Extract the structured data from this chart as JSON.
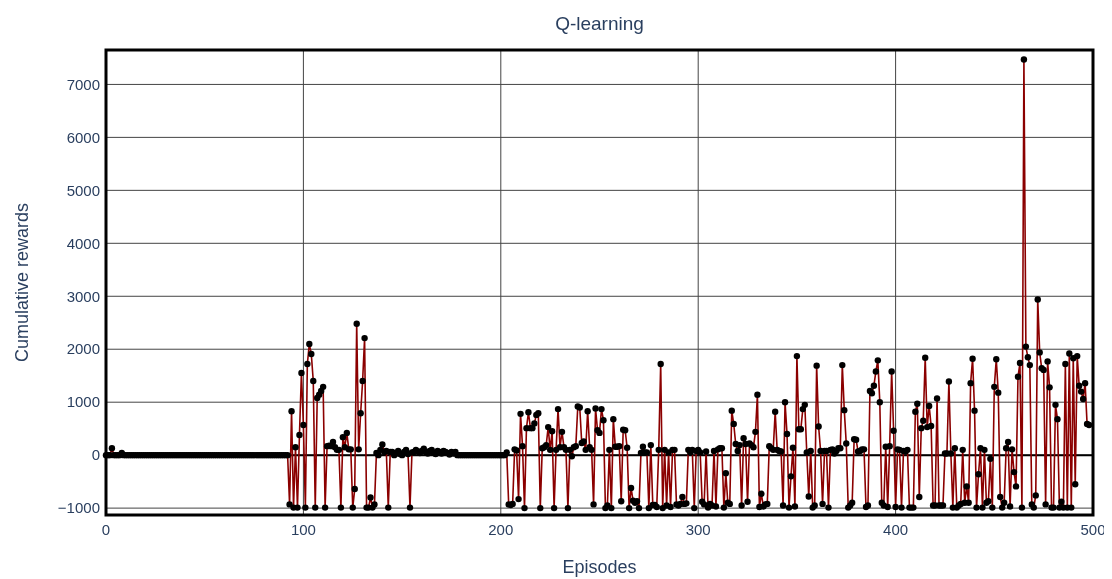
{
  "chart_data": {
    "type": "line",
    "title": "Q-learning",
    "xlabel": "Episodes",
    "ylabel": "Cumulative rewards",
    "xlim": [
      0,
      500
    ],
    "xticks": [
      0,
      100,
      200,
      300,
      400,
      500
    ],
    "ylim": [
      -1130,
      7650
    ],
    "yticks": [
      {
        "value": -1000,
        "label": "−1000"
      },
      0,
      1000,
      2000,
      3000,
      4000,
      5000,
      6000,
      7000
    ],
    "grid": true,
    "marker": "circle",
    "line_style": "solid",
    "ref_lines": [
      {
        "axis": "y",
        "value": 0,
        "color": "#000000"
      }
    ],
    "series": [
      {
        "color": "#8b0000",
        "x": [
          0,
          1,
          2,
          3,
          4,
          5,
          6,
          7,
          8,
          9,
          10,
          11,
          12,
          13,
          14,
          15,
          16,
          17,
          18,
          19,
          20,
          21,
          22,
          23,
          24,
          25,
          26,
          27,
          28,
          29,
          30,
          31,
          32,
          33,
          34,
          35,
          36,
          37,
          38,
          39,
          40,
          41,
          42,
          43,
          44,
          45,
          46,
          47,
          48,
          49,
          50,
          51,
          52,
          53,
          54,
          55,
          56,
          57,
          58,
          59,
          60,
          61,
          62,
          63,
          64,
          65,
          66,
          67,
          68,
          69,
          70,
          71,
          72,
          73,
          74,
          75,
          76,
          77,
          78,
          79,
          80,
          81,
          82,
          83,
          84,
          85,
          86,
          87,
          88,
          89,
          90,
          91,
          92,
          93,
          94,
          95,
          96,
          97,
          98,
          99,
          100,
          101,
          102,
          103,
          104,
          105,
          106,
          107,
          108,
          109,
          110,
          111,
          112,
          113,
          114,
          115,
          116,
          117,
          118,
          119,
          120,
          121,
          122,
          123,
          124,
          125,
          126,
          127,
          128,
          129,
          130,
          131,
          132,
          133,
          134,
          135,
          136,
          137,
          138,
          139,
          140,
          141,
          142,
          143,
          144,
          145,
          146,
          147,
          148,
          149,
          150,
          151,
          152,
          153,
          154,
          155,
          156,
          157,
          158,
          159,
          160,
          161,
          162,
          163,
          164,
          165,
          166,
          167,
          168,
          169,
          170,
          171,
          172,
          173,
          174,
          175,
          176,
          177,
          178,
          179,
          180,
          181,
          182,
          183,
          184,
          185,
          186,
          187,
          188,
          189,
          190,
          191,
          192,
          193,
          194,
          195,
          196,
          197,
          198,
          199,
          200,
          201,
          202,
          203,
          204,
          205,
          206,
          207,
          208,
          209,
          210,
          211,
          212,
          213,
          214,
          215,
          216,
          217,
          218,
          219,
          220,
          221,
          222,
          223,
          224,
          225,
          226,
          227,
          228,
          229,
          230,
          231,
          232,
          233,
          234,
          235,
          236,
          237,
          238,
          239,
          240,
          241,
          242,
          243,
          244,
          245,
          246,
          247,
          248,
          249,
          250,
          251,
          252,
          253,
          254,
          255,
          256,
          257,
          258,
          259,
          260,
          261,
          262,
          263,
          264,
          265,
          266,
          267,
          268,
          269,
          270,
          271,
          272,
          273,
          274,
          275,
          276,
          277,
          278,
          279,
          280,
          281,
          282,
          283,
          284,
          285,
          286,
          287,
          288,
          289,
          290,
          291,
          292,
          293,
          294,
          295,
          296,
          297,
          298,
          299,
          300,
          301,
          302,
          303,
          304,
          305,
          306,
          307,
          308,
          309,
          310,
          311,
          312,
          313,
          314,
          315,
          316,
          317,
          318,
          319,
          320,
          321,
          322,
          323,
          324,
          325,
          326,
          327,
          328,
          329,
          330,
          331,
          332,
          333,
          334,
          335,
          336,
          337,
          338,
          339,
          340,
          341,
          342,
          343,
          344,
          345,
          346,
          347,
          348,
          349,
          350,
          351,
          352,
          353,
          354,
          355,
          356,
          357,
          358,
          359,
          360,
          361,
          362,
          363,
          364,
          365,
          366,
          367,
          368,
          369,
          370,
          371,
          372,
          373,
          374,
          375,
          376,
          377,
          378,
          379,
          380,
          381,
          382,
          383,
          384,
          385,
          386,
          387,
          388,
          389,
          390,
          391,
          392,
          393,
          394,
          395,
          396,
          397,
          398,
          399,
          400,
          401,
          402,
          403,
          404,
          405,
          406,
          407,
          408,
          409,
          410,
          411,
          412,
          413,
          414,
          415,
          416,
          417,
          418,
          419,
          420,
          421,
          422,
          423,
          424,
          425,
          426,
          427,
          428,
          429,
          430,
          431,
          432,
          433,
          434,
          435,
          436,
          437,
          438,
          439,
          440,
          441,
          442,
          443,
          444,
          445,
          446,
          447,
          448,
          449,
          450,
          451,
          452,
          453,
          454,
          455,
          456,
          457,
          458,
          459,
          460,
          461,
          462,
          463,
          464,
          465,
          466,
          467,
          468,
          469,
          470,
          471,
          472,
          473,
          474,
          475,
          476,
          477,
          478,
          479,
          480,
          481,
          482,
          483,
          484,
          485,
          486,
          487,
          488,
          489,
          490,
          491,
          492,
          493,
          494,
          495,
          496,
          497,
          498
        ],
        "values": [
          0,
          0,
          0,
          130,
          0,
          0,
          0,
          0,
          40,
          0,
          0,
          0,
          0,
          0,
          0,
          0,
          0,
          0,
          0,
          0,
          0,
          0,
          0,
          0,
          0,
          0,
          0,
          0,
          0,
          0,
          0,
          0,
          0,
          0,
          0,
          0,
          0,
          0,
          0,
          0,
          0,
          0,
          0,
          0,
          0,
          0,
          0,
          0,
          0,
          0,
          0,
          0,
          0,
          0,
          0,
          0,
          0,
          0,
          0,
          0,
          0,
          0,
          0,
          0,
          0,
          0,
          0,
          0,
          0,
          0,
          0,
          0,
          0,
          0,
          0,
          0,
          0,
          0,
          0,
          0,
          0,
          0,
          0,
          0,
          0,
          0,
          0,
          0,
          0,
          0,
          0,
          0,
          0,
          -930,
          830,
          -990,
          150,
          -990,
          380,
          1550,
          570,
          -990,
          1720,
          2100,
          1910,
          1400,
          -990,
          1080,
          1140,
          1210,
          1290,
          -990,
          170,
          180,
          170,
          250,
          150,
          100,
          100,
          -990,
          340,
          150,
          420,
          110,
          110,
          -990,
          -640,
          2480,
          110,
          790,
          1400,
          2210,
          -990,
          -990,
          -800,
          -990,
          -930,
          40,
          0,
          100,
          200,
          60,
          80,
          -990,
          60,
          60,
          0,
          30,
          80,
          20,
          0,
          60,
          100,
          20,
          -990,
          50,
          60,
          100,
          70,
          40,
          80,
          120,
          60,
          30,
          80,
          100,
          40,
          20,
          80,
          60,
          30,
          80,
          60,
          40,
          10,
          60,
          30,
          60,
          0,
          0,
          0,
          0,
          0,
          0,
          0,
          0,
          0,
          0,
          0,
          0,
          0,
          0,
          0,
          0,
          0,
          0,
          0,
          0,
          0,
          0,
          0,
          0,
          0,
          50,
          -930,
          -940,
          -920,
          110,
          90,
          -830,
          780,
          170,
          -1000,
          510,
          810,
          510,
          510,
          600,
          760,
          790,
          -1000,
          130,
          150,
          190,
          530,
          100,
          450,
          -1000,
          100,
          870,
          150,
          440,
          150,
          100,
          -1000,
          100,
          -20,
          150,
          170,
          920,
          900,
          230,
          260,
          100,
          830,
          150,
          100,
          -930,
          880,
          470,
          420,
          870,
          660,
          -1000,
          -950,
          100,
          -1000,
          680,
          160,
          160,
          170,
          -870,
          480,
          470,
          140,
          -1000,
          -620,
          -860,
          -900,
          -870,
          -1000,
          40,
          160,
          50,
          50,
          -1000,
          190,
          -940,
          -940,
          -980,
          100,
          1720,
          -1000,
          100,
          -950,
          50,
          -980,
          100,
          100,
          -930,
          -950,
          -920,
          -790,
          -920,
          -910,
          100,
          50,
          100,
          -1000,
          80,
          100,
          50,
          -880,
          -930,
          70,
          -990,
          -920,
          -950,
          80,
          -970,
          110,
          130,
          130,
          -990,
          -340,
          -900,
          -920,
          840,
          590,
          210,
          80,
          190,
          -950,
          320,
          210,
          -880,
          220,
          190,
          150,
          440,
          1140,
          -980,
          -730,
          -970,
          -930,
          -920,
          170,
          130,
          100,
          820,
          100,
          80,
          70,
          -950,
          1000,
          400,
          -990,
          -400,
          140,
          -970,
          1870,
          490,
          490,
          870,
          950,
          50,
          -780,
          80,
          -990,
          -950,
          1690,
          540,
          80,
          -920,
          80,
          80,
          -990,
          100,
          110,
          30,
          80,
          130,
          130,
          1700,
          850,
          220,
          -990,
          -950,
          -900,
          300,
          290,
          70,
          80,
          110,
          110,
          -980,
          -950,
          1210,
          1170,
          1310,
          1580,
          1790,
          1000,
          -900,
          -950,
          160,
          -980,
          170,
          1580,
          460,
          -980,
          110,
          100,
          -990,
          80,
          70,
          100,
          -990,
          -990,
          -990,
          820,
          970,
          -790,
          510,
          650,
          1840,
          530,
          930,
          550,
          -950,
          -950,
          1070,
          -950,
          -950,
          -950,
          30,
          30,
          1390,
          30,
          -990,
          130,
          -990,
          -950,
          -920,
          100,
          -900,
          -590,
          -900,
          1360,
          1820,
          840,
          -990,
          -360,
          130,
          -990,
          100,
          -900,
          -870,
          -70,
          -990,
          1290,
          1810,
          1180,
          -790,
          -990,
          -900,
          130,
          250,
          -970,
          110,
          -320,
          -590,
          1480,
          1740,
          -990,
          7470,
          2050,
          1850,
          1700,
          -930,
          -990,
          -760,
          2940,
          1940,
          1640,
          1610,
          -930,
          1770,
          1280,
          -990,
          -990,
          950,
          680,
          -990,
          -880,
          -990,
          1720,
          -990,
          1920,
          -990,
          1830,
          -550,
          1870,
          1310,
          1200,
          1060,
          1360,
          590,
          570
        ]
      }
    ]
  }
}
